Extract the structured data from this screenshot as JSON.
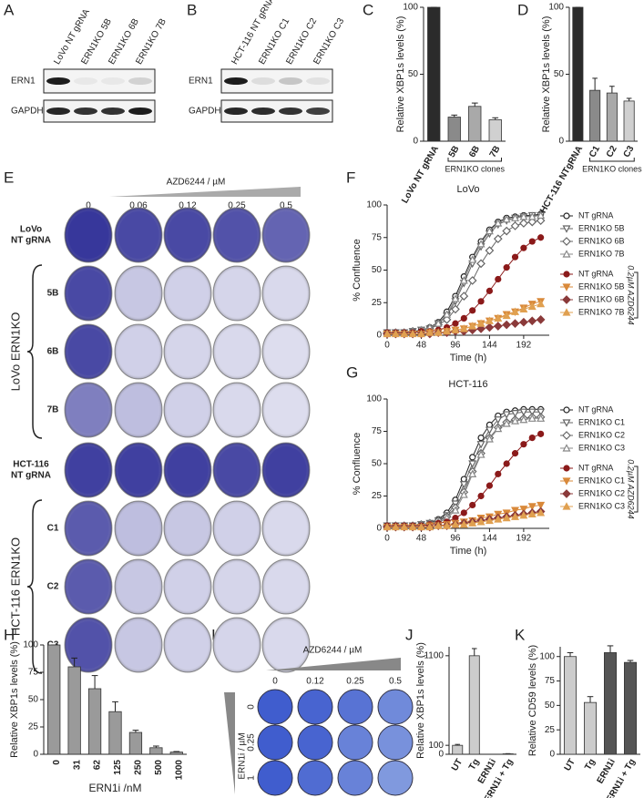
{
  "panel_labels": [
    "A",
    "B",
    "C",
    "D",
    "E",
    "F",
    "G",
    "H",
    "I",
    "J",
    "K"
  ],
  "blot_A": {
    "lanes": [
      "LoVo NT gRNA",
      "ERN1KO 5B",
      "ERN1KO 6B",
      "ERN1KO 7B"
    ],
    "rows": [
      "ERN1",
      "GAPDH"
    ]
  },
  "blot_B": {
    "lanes": [
      "HCT-116 NT gRNA",
      "ERN1KO C1",
      "ERN1KO C2",
      "ERN1KO C3"
    ],
    "rows": [
      "ERN1",
      "GAPDH"
    ]
  },
  "plates_E": {
    "header": "AZD6244 / µM",
    "doses": [
      "0",
      "0.06",
      "0.12",
      "0.25",
      "0.5"
    ],
    "rows": [
      [
        "LoVo",
        "NT gRNA"
      ],
      [
        "5B"
      ],
      [
        "6B"
      ],
      [
        "7B"
      ],
      [
        "HCT-116",
        "NT gRNA"
      ],
      [
        "C1"
      ],
      [
        "C2"
      ],
      [
        "C3"
      ]
    ],
    "groups": [
      "LoVo ERN1KO",
      "HCT-116 ERN1KO"
    ]
  },
  "plates_I": {
    "header": "AZD6244 / µM",
    "doses": [
      "0",
      "0.12",
      "0.25",
      "0.5"
    ],
    "row_axis": "ERN1i / µM",
    "rows": [
      "0",
      "0.25",
      "1"
    ]
  },
  "chart_data": [
    {
      "type": "bar",
      "ylabel": "Relative XBP1s levels (%)",
      "categories": [
        "LoVo NT gRNA",
        "5B",
        "6B",
        "7B"
      ],
      "values": [
        100,
        18,
        26,
        16
      ],
      "errors": [
        0,
        1.5,
        2.5,
        1.5
      ],
      "colors": [
        "#2b2b2b",
        "#8a8a8a",
        "#a9a9a9",
        "#d0d0d0"
      ],
      "ylim": [
        0,
        100
      ],
      "yticks": [
        0,
        50,
        100
      ],
      "annotation": "ERN1KO clones"
    },
    {
      "type": "bar",
      "ylabel": "Relative XBP1s levels (%)",
      "categories": [
        "HCT-116 NTgRNA",
        "C1",
        "C2",
        "C3"
      ],
      "values": [
        100,
        38,
        36,
        30
      ],
      "errors": [
        0,
        9,
        5,
        2
      ],
      "colors": [
        "#2b2b2b",
        "#8a8a8a",
        "#a9a9a9",
        "#d0d0d0"
      ],
      "ylim": [
        0,
        100
      ],
      "yticks": [
        0,
        50,
        100
      ],
      "annotation": "ERN1KO clones"
    },
    {
      "type": "line",
      "title": "LoVo",
      "xlabel": "Time (h)",
      "ylabel": "% Confluence",
      "annotation": "0.2µM AZD6244",
      "x": [
        0,
        12,
        24,
        36,
        48,
        60,
        72,
        84,
        96,
        108,
        120,
        132,
        144,
        156,
        168,
        180,
        192,
        204,
        216
      ],
      "xlim": [
        0,
        228
      ],
      "xticks": [
        0,
        48,
        96,
        144,
        192
      ],
      "ylim": [
        0,
        100
      ],
      "yticks": [
        0,
        25,
        50,
        75,
        100
      ],
      "series": [
        {
          "name": "NT gRNA",
          "color": "#222222",
          "marker": "circle",
          "filled": false,
          "values": [
            2,
            2,
            2,
            3,
            4,
            6,
            10,
            18,
            30,
            45,
            60,
            72,
            81,
            87,
            90,
            91,
            92,
            92,
            93
          ]
        },
        {
          "name": "ERN1KO 5B",
          "color": "#666666",
          "marker": "triangle-down",
          "filled": false,
          "values": [
            2,
            2,
            2,
            3,
            4,
            5,
            9,
            15,
            26,
            40,
            55,
            68,
            78,
            85,
            88,
            90,
            91,
            92,
            92
          ]
        },
        {
          "name": "ERN1KO 6B",
          "color": "#666666",
          "marker": "diamond",
          "filled": false,
          "values": [
            2,
            2,
            2,
            3,
            3,
            5,
            8,
            12,
            20,
            30,
            42,
            55,
            65,
            74,
            80,
            84,
            86,
            87,
            88
          ]
        },
        {
          "name": "ERN1KO 7B",
          "color": "#888888",
          "marker": "triangle-up",
          "filled": false,
          "values": [
            2,
            2,
            2,
            3,
            4,
            6,
            9,
            16,
            28,
            42,
            58,
            70,
            80,
            86,
            89,
            90,
            91,
            91,
            92
          ]
        },
        {
          "name": "NT gRNA",
          "color": "#8b1a1a",
          "marker": "circle",
          "filled": true,
          "values": [
            2,
            2,
            2,
            2,
            3,
            3,
            4,
            6,
            9,
            13,
            19,
            26,
            34,
            43,
            52,
            60,
            67,
            72,
            75
          ]
        },
        {
          "name": "ERN1KO 5B",
          "color": "#d9893a",
          "marker": "triangle-down",
          "filled": true,
          "values": [
            1,
            1,
            1,
            1,
            1,
            2,
            2,
            3,
            4,
            5,
            7,
            9,
            11,
            13,
            16,
            18,
            21,
            24,
            26
          ]
        },
        {
          "name": "ERN1KO 6B",
          "color": "#8b3a3a",
          "marker": "diamond",
          "filled": true,
          "values": [
            1,
            1,
            1,
            1,
            1,
            1,
            2,
            2,
            3,
            3,
            4,
            5,
            6,
            7,
            8,
            9,
            10,
            11,
            12
          ]
        },
        {
          "name": "ERN1KO 7B",
          "color": "#e0a050",
          "marker": "triangle-up",
          "filled": true,
          "values": [
            1,
            1,
            1,
            1,
            1,
            2,
            2,
            3,
            4,
            5,
            7,
            9,
            11,
            13,
            15,
            18,
            20,
            22,
            24
          ]
        }
      ]
    },
    {
      "type": "line",
      "title": "HCT-116",
      "xlabel": "Time (h)",
      "ylabel": "% Confluence",
      "annotation": "0.2µM AZD6244",
      "x": [
        0,
        12,
        24,
        36,
        48,
        60,
        72,
        84,
        96,
        108,
        120,
        132,
        144,
        156,
        168,
        180,
        192,
        204,
        216
      ],
      "xlim": [
        0,
        228
      ],
      "xticks": [
        0,
        48,
        96,
        144,
        192
      ],
      "ylim": [
        0,
        100
      ],
      "yticks": [
        0,
        25,
        50,
        75,
        100
      ],
      "series": [
        {
          "name": "NT gRNA",
          "color": "#222222",
          "marker": "circle",
          "filled": false,
          "values": [
            2,
            2,
            2,
            2,
            3,
            4,
            7,
            12,
            22,
            38,
            55,
            70,
            80,
            87,
            90,
            91,
            92,
            92,
            92
          ]
        },
        {
          "name": "ERN1KO C1",
          "color": "#666666",
          "marker": "triangle-down",
          "filled": false,
          "values": [
            2,
            2,
            2,
            2,
            3,
            4,
            6,
            10,
            19,
            34,
            50,
            65,
            76,
            84,
            88,
            89,
            90,
            90,
            90
          ]
        },
        {
          "name": "ERN1KO C2",
          "color": "#666666",
          "marker": "diamond",
          "filled": false,
          "values": [
            2,
            2,
            2,
            2,
            3,
            4,
            6,
            9,
            16,
            28,
            44,
            58,
            70,
            78,
            82,
            84,
            85,
            86,
            86
          ]
        },
        {
          "name": "ERN1KO C3",
          "color": "#888888",
          "marker": "triangle-up",
          "filled": false,
          "values": [
            2,
            2,
            2,
            2,
            3,
            4,
            5,
            8,
            14,
            26,
            42,
            57,
            69,
            77,
            81,
            83,
            84,
            85,
            85
          ]
        },
        {
          "name": "NT gRNA",
          "color": "#8b1a1a",
          "marker": "circle",
          "filled": true,
          "values": [
            2,
            2,
            2,
            2,
            2,
            3,
            4,
            5,
            8,
            12,
            18,
            25,
            33,
            42,
            50,
            58,
            65,
            70,
            73
          ]
        },
        {
          "name": "ERN1KO C1",
          "color": "#d9893a",
          "marker": "triangle-down",
          "filled": true,
          "values": [
            1,
            1,
            1,
            1,
            1,
            2,
            2,
            3,
            4,
            5,
            6,
            8,
            9,
            11,
            12,
            14,
            15,
            17,
            18
          ]
        },
        {
          "name": "ERN1KO C2",
          "color": "#8b3a3a",
          "marker": "diamond",
          "filled": true,
          "values": [
            1,
            1,
            1,
            1,
            1,
            1,
            2,
            2,
            3,
            4,
            5,
            6,
            7,
            8,
            9,
            10,
            11,
            12,
            13
          ]
        },
        {
          "name": "ERN1KO C3",
          "color": "#e0a050",
          "marker": "triangle-up",
          "filled": true,
          "values": [
            1,
            1,
            1,
            1,
            1,
            1,
            2,
            2,
            3,
            3,
            4,
            5,
            6,
            7,
            8,
            9,
            10,
            11,
            12
          ]
        }
      ]
    },
    {
      "type": "bar",
      "ylabel": "Relative XBP1s levels (%)",
      "xlabel": "ERN1i /nM",
      "categories": [
        "0",
        "31",
        "62",
        "125",
        "250",
        "500",
        "1000"
      ],
      "values": [
        100,
        80,
        60,
        39,
        20,
        6,
        2
      ],
      "errors": [
        0,
        8,
        12,
        9,
        2,
        1.5,
        0.5
      ],
      "colors": [
        "#9a9a9a",
        "#9a9a9a",
        "#9a9a9a",
        "#9a9a9a",
        "#9a9a9a",
        "#9a9a9a",
        "#9a9a9a"
      ],
      "ylim": [
        0,
        100
      ],
      "yticks": [
        0,
        25,
        50,
        75,
        100
      ]
    },
    {
      "type": "bar",
      "ylabel": "Relative XBP1s levels (%)",
      "categories": [
        "UT",
        "Tg",
        "ERN1i",
        "ERN1i + Tg"
      ],
      "values": [
        100,
        1100,
        0,
        5
      ],
      "errors": [
        10,
        80,
        0,
        2
      ],
      "colors": [
        "#cccccc",
        "#cccccc",
        "#cccccc",
        "#cccccc"
      ],
      "ylim": [
        0,
        1200
      ],
      "yticks": [
        0,
        100,
        1100
      ]
    },
    {
      "type": "bar",
      "ylabel": "Relative CD59 levels (%)",
      "categories": [
        "UT",
        "Tg",
        "ERN1i",
        "ERN1i + Tg"
      ],
      "values": [
        100,
        53,
        104,
        94
      ],
      "errors": [
        4,
        6,
        7,
        2
      ],
      "colors": [
        "#cccccc",
        "#cccccc",
        "#555555",
        "#555555"
      ],
      "ylim": [
        0,
        110
      ],
      "yticks": [
        0,
        25,
        50,
        75,
        100
      ]
    }
  ]
}
